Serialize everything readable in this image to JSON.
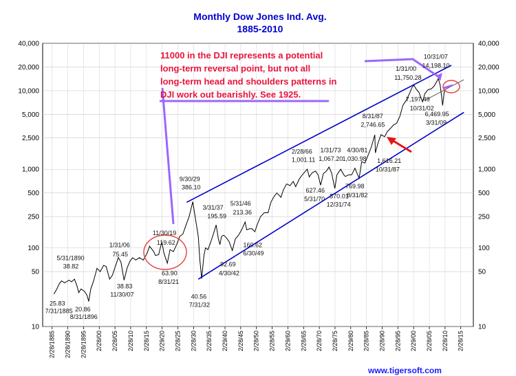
{
  "chart_data": {
    "type": "line",
    "title": "Monthly Dow Jones Ind. Avg.",
    "subtitle": "1885-2010",
    "xlabel": "",
    "ylabel": "",
    "y_scale": "log",
    "ylim": [
      10,
      40000
    ],
    "xlim": [
      1882,
      2019
    ],
    "y_ticks": [
      "40,000",
      "20,000",
      "10,000",
      "5,000",
      "2,500",
      "1,000",
      "500",
      "250",
      "100",
      "50",
      "10"
    ],
    "y_tick_values": [
      40000,
      20000,
      10000,
      5000,
      2500,
      1000,
      500,
      250,
      100,
      50,
      10
    ],
    "x_ticks": [
      "2/28/1885",
      "2/28/1890",
      "2/28/1895",
      "2/28/00",
      "2/28/05",
      "2/28/10",
      "2/28/15",
      "2/29/20",
      "2/28/25",
      "2/28/30",
      "2/28/35",
      "2/29/40",
      "2/28/45",
      "2/28/50",
      "2/28/55",
      "2/29/60",
      "2/28/65",
      "2/28/70",
      "2/28/75",
      "2/29/80",
      "2/28/85",
      "2/28/90",
      "2/28/95",
      "2/29/00",
      "2/28/05",
      "2/28/10",
      "2/28/15"
    ],
    "x_tick_years": [
      1885,
      1890,
      1895,
      1900,
      1905,
      1910,
      1915,
      1920,
      1925,
      1930,
      1935,
      1940,
      1945,
      1950,
      1955,
      1960,
      1965,
      1970,
      1975,
      1980,
      1985,
      1990,
      1995,
      2000,
      2005,
      2010,
      2015
    ],
    "grid": true,
    "legend": "none",
    "series": [
      {
        "color": "#000000",
        "x": [
          1885.6,
          1886.5,
          1887.3,
          1888,
          1889,
          1890.4,
          1891.2,
          1892.1,
          1892.9,
          1893.5,
          1894.2,
          1895.3,
          1896.1,
          1896.66,
          1897.3,
          1898.2,
          1899.3,
          1900.3,
          1901.4,
          1902.2,
          1903.3,
          1904.2,
          1906.08,
          1906.9,
          1907.9,
          1908.9,
          1909.8,
          1910.6,
          1911.6,
          1912.8,
          1914.0,
          1915.2,
          1916.0,
          1917.3,
          1917.9,
          1918.9,
          1919.91,
          1920.6,
          1921.66,
          1922.5,
          1923.6,
          1924.6,
          1925.6,
          1926.6,
          1927.5,
          1928.6,
          1929.75,
          1930.3,
          1930.9,
          1931.5,
          1932.0,
          1932.58,
          1933.3,
          1933.8,
          1934.6,
          1935.5,
          1936.3,
          1937.2,
          1937.9,
          1938.4,
          1938.9,
          1939.6,
          1940.4,
          1941.3,
          1942.33,
          1943.3,
          1944.3,
          1945.3,
          1946.4,
          1946.9,
          1947.8,
          1948.6,
          1949.5,
          1950.3,
          1951.3,
          1952.5,
          1953.7,
          1954.6,
          1955.6,
          1956.5,
          1957.8,
          1958.6,
          1959.6,
          1960.7,
          1961.7,
          1962.5,
          1963.6,
          1964.6,
          1966.16,
          1966.8,
          1967.7,
          1968.8,
          1969.6,
          1970.42,
          1971.3,
          1972.3,
          1973.08,
          1973.9,
          1974.95,
          1975.6,
          1976.8,
          1977.8,
          1978.3,
          1979.4,
          1980.3,
          1981.33,
          1982.66,
          1983.5,
          1984.5,
          1985.5,
          1986.5,
          1987.66,
          1987.83,
          1988.6,
          1989.6,
          1990.8,
          1991.6,
          1992.6,
          1993.6,
          1994.6,
          1995.6,
          1996.6,
          1997.6,
          1998.6,
          1999.5,
          2000.08,
          2000.8,
          2001.7,
          2002.83,
          2003.6,
          2004.6,
          2005.6,
          2006.6,
          2007.83,
          2008.4,
          2008.9,
          2009.25,
          2009.7,
          2010.1
        ],
        "y": [
          25.83,
          30,
          35,
          38,
          36,
          38.82,
          37,
          40,
          33,
          27,
          30,
          28,
          25,
          20.86,
          30,
          38,
          55,
          50,
          60,
          58,
          40,
          45,
          75.45,
          66,
          38.83,
          56,
          68,
          75,
          70,
          75,
          70,
          85,
          105,
          90,
          80,
          82,
          119.62,
          85,
          63.9,
          95,
          90,
          110,
          140,
          150,
          190,
          250,
          386.1,
          280,
          200,
          140,
          70,
          40.56,
          80,
          100,
          95,
          120,
          150,
          195.59,
          130,
          110,
          140,
          145,
          135,
          120,
          92.69,
          130,
          145,
          170,
          213.36,
          170,
          175,
          175,
          160.62,
          200,
          250,
          280,
          280,
          380,
          450,
          500,
          440,
          550,
          650,
          620,
          700,
          600,
          750,
          850,
          1001.11,
          800,
          900,
          950,
          850,
          627.46,
          880,
          950,
          1067.2,
          900,
          570.01,
          850,
          1000,
          850,
          810,
          850,
          850,
          1030.98,
          769.98,
          1250,
          1200,
          1500,
          1900,
          2746.65,
          1616.21,
          2100,
          2750,
          2600,
          3000,
          3300,
          3650,
          3850,
          4700,
          6500,
          7500,
          9000,
          11000,
          11750.28,
          10500,
          9500,
          7197.49,
          9200,
          10300,
          10500,
          11500,
          14198.1,
          12000,
          8500,
          6469.95,
          9500,
          10400
        ]
      }
    ],
    "channel_upper": {
      "x": [
        1927.8,
        2012
      ],
      "y": [
        380,
        21000
      ]
    },
    "channel_lower": {
      "x": [
        1931.5,
        2016
      ],
      "y": [
        40,
        5300
      ]
    },
    "neckline": {
      "x": [
        2003.5,
        2016
      ],
      "y": [
        7500,
        13800
      ]
    },
    "annotations": [
      {
        "text": "5/31/1890",
        "x": 1886.5,
        "y": 70
      },
      {
        "text": "38.82",
        "x": 1888.5,
        "y": 55
      },
      {
        "text": "25.83",
        "x": 1884.2,
        "y": 18.5
      },
      {
        "text": "7/31/1885",
        "x": 1882.8,
        "y": 14.8
      },
      {
        "text": "20.86",
        "x": 1892.3,
        "y": 15.5
      },
      {
        "text": "8/31/1896",
        "x": 1890.7,
        "y": 12.5
      },
      {
        "text": "1/31/06",
        "x": 1903.2,
        "y": 102
      },
      {
        "text": "75.45",
        "x": 1904.2,
        "y": 78
      },
      {
        "text": "38.83",
        "x": 1905.6,
        "y": 30.5
      },
      {
        "text": "11/30/07",
        "x": 1903.5,
        "y": 24
      },
      {
        "text": "11/30/19",
        "x": 1917,
        "y": 145
      },
      {
        "text": "119.62",
        "x": 1918.3,
        "y": 110
      },
      {
        "text": "63.90",
        "x": 1919.9,
        "y": 45
      },
      {
        "text": "8/31/21",
        "x": 1918.8,
        "y": 35
      },
      {
        "text": "9/30/29",
        "x": 1925.5,
        "y": 710
      },
      {
        "text": "386.10",
        "x": 1926.2,
        "y": 555
      },
      {
        "text": "40.56",
        "x": 1929.2,
        "y": 22.5
      },
      {
        "text": "7/31/32",
        "x": 1928.6,
        "y": 17.8
      },
      {
        "text": "3/31/37",
        "x": 1932.9,
        "y": 305
      },
      {
        "text": "195.59",
        "x": 1934.4,
        "y": 238
      },
      {
        "text": "5/31/46",
        "x": 1941.7,
        "y": 345
      },
      {
        "text": "213.36",
        "x": 1942.5,
        "y": 265
      },
      {
        "text": "160.62",
        "x": 1945.8,
        "y": 102
      },
      {
        "text": "6/30/49",
        "x": 1945.8,
        "y": 80
      },
      {
        "text": "92.69",
        "x": 1938.5,
        "y": 58
      },
      {
        "text": "4/30/42",
        "x": 1938,
        "y": 45
      },
      {
        "text": "2/28/66",
        "x": 1961.2,
        "y": 1580
      },
      {
        "text": "1,001.11",
        "x": 1961.2,
        "y": 1240
      },
      {
        "text": "1/31/73",
        "x": 1970.3,
        "y": 1650
      },
      {
        "text": "1,067.20",
        "x": 1969.8,
        "y": 1280
      },
      {
        "text": "4/30/81",
        "x": 1978.8,
        "y": 1650
      },
      {
        "text": "1,030.98",
        "x": 1977.3,
        "y": 1280
      },
      {
        "text": "627.46",
        "x": 1965.7,
        "y": 505
      },
      {
        "text": "5/31/70",
        "x": 1965.2,
        "y": 395
      },
      {
        "text": "570.01",
        "x": 1973.3,
        "y": 425
      },
      {
        "text": "12/31/74",
        "x": 1972.3,
        "y": 335
      },
      {
        "text": "769.98",
        "x": 1978.3,
        "y": 570
      },
      {
        "text": "8/31/82",
        "x": 1978.8,
        "y": 440
      },
      {
        "text": "8/31/87",
        "x": 1983.7,
        "y": 4450
      },
      {
        "text": "2,746.65",
        "x": 1983.2,
        "y": 3450
      },
      {
        "text": "1,616.21",
        "x": 1988.4,
        "y": 1200
      },
      {
        "text": "10/31/87",
        "x": 1987.9,
        "y": 940
      },
      {
        "text": "1/31/00",
        "x": 1994.3,
        "y": 17800
      },
      {
        "text": "11,750.28",
        "x": 1993.9,
        "y": 13800
      },
      {
        "text": "10/31/07",
        "x": 2003.2,
        "y": 25500
      },
      {
        "text": "14,198.10",
        "x": 2002.7,
        "y": 19500
      },
      {
        "text": "7,197.49",
        "x": 1997.5,
        "y": 7300
      },
      {
        "text": "10/31/02",
        "x": 1998.8,
        "y": 5600
      },
      {
        "text": "6,469.95",
        "x": 2003.6,
        "y": 4750
      },
      {
        "text": "3/31/09",
        "x": 2003.9,
        "y": 3700
      }
    ],
    "note_lines": [
      "11000 in the DJI represents a potential",
      "long-term reversal point, but not all",
      "long-term head and shoulders patterns in",
      "DJI work out bearishly.  See 1925."
    ],
    "footer": "www.tigersoft.com",
    "colors": {
      "title": "#0000cc",
      "channel": "#0000cc",
      "note": "#e8143c",
      "callout": "#9966ff",
      "circle": "#e83c3c",
      "arrow": "#e81414",
      "series": "#000000"
    }
  }
}
